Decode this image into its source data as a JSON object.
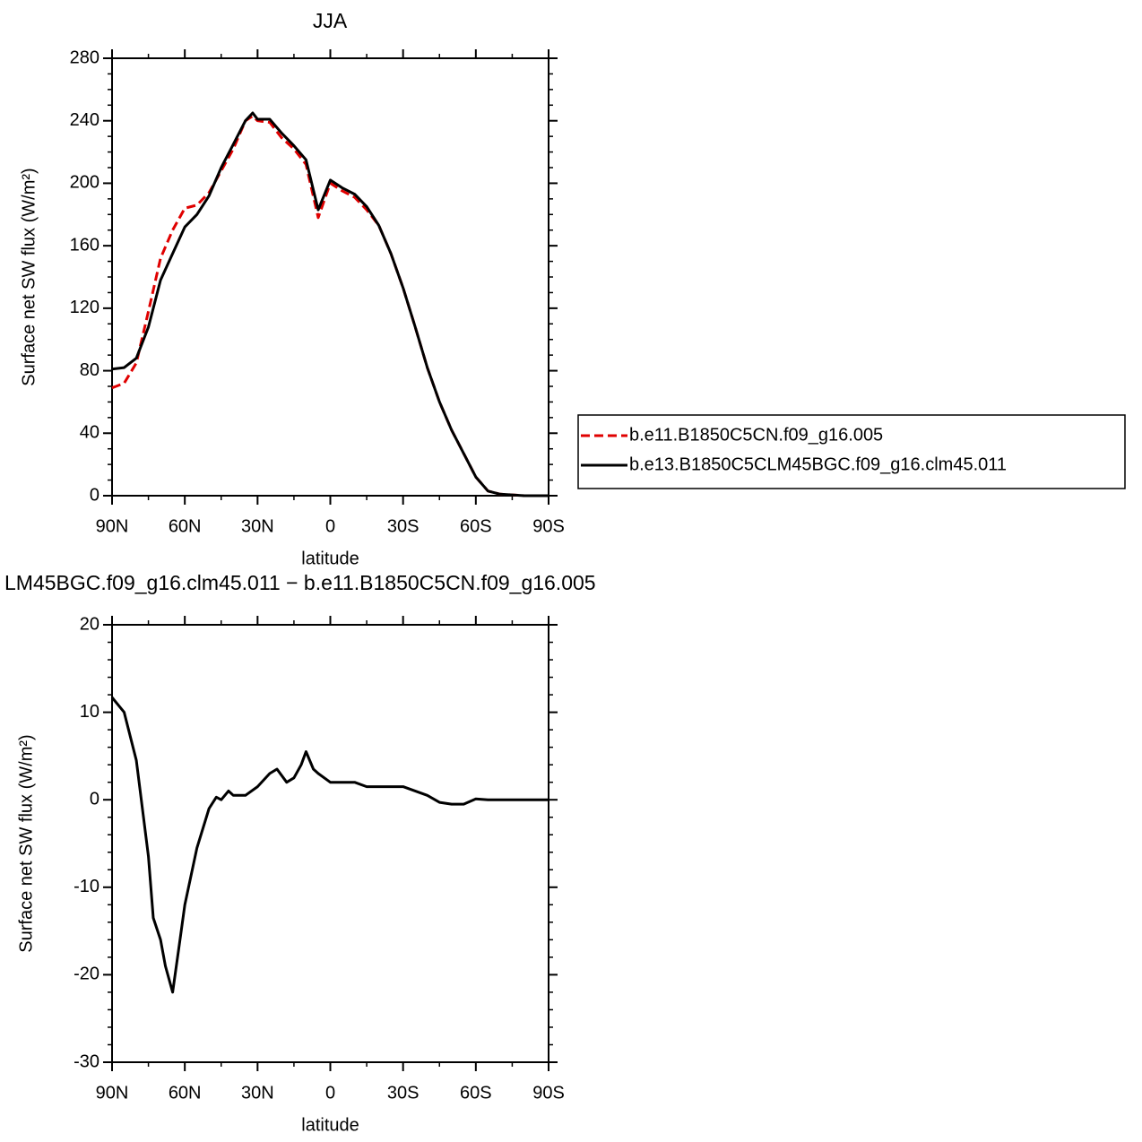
{
  "chart_data": [
    {
      "type": "line",
      "title": "JJA",
      "xlabel": "latitude",
      "ylabel": "Surface net SW flux (W/m²)",
      "x": [
        90,
        85,
        80,
        75,
        70,
        65,
        60,
        55,
        50,
        45,
        40,
        35,
        32,
        30,
        25,
        20,
        15,
        10,
        5,
        0,
        -5,
        -10,
        -15,
        -20,
        -25,
        -30,
        -35,
        -40,
        -45,
        -50,
        -55,
        -60,
        -65,
        -70,
        -75,
        -80,
        -85,
        -90
      ],
      "series": [
        {
          "name": "b.e11.B1850C5CN.f09_g16.005",
          "color": "#e00000",
          "dash": true,
          "values": [
            69,
            72,
            85,
            118,
            152,
            170,
            184,
            186,
            194,
            208,
            222,
            240,
            243,
            240,
            239,
            229,
            222,
            212,
            178,
            200,
            195,
            191,
            183,
            173,
            155,
            133,
            108,
            82,
            60,
            42,
            27,
            12,
            3,
            1,
            0.5,
            0,
            0,
            0
          ]
        },
        {
          "name": "b.e13.B1850C5CLM45BGC.f09_g16.clm45.011",
          "color": "#000000",
          "dash": false,
          "values": [
            81,
            82,
            88,
            108,
            138,
            155,
            172,
            180,
            192,
            210,
            225,
            240,
            245,
            241,
            241,
            232,
            224,
            215,
            183,
            202,
            197,
            193,
            185,
            173,
            155,
            133,
            108,
            82,
            60,
            42,
            27,
            12,
            3,
            1,
            0.5,
            0,
            0,
            0
          ]
        }
      ],
      "xlim": [
        90,
        -90
      ],
      "xticks": [
        {
          "value": 90,
          "label": "90N"
        },
        {
          "value": 60,
          "label": "60N"
        },
        {
          "value": 30,
          "label": "30N"
        },
        0,
        {
          "value": -30,
          "label": "30S"
        },
        {
          "value": -60,
          "label": "60S"
        },
        {
          "value": -90,
          "label": "90S"
        }
      ],
      "ylim": [
        0,
        280
      ],
      "yticks": [
        0,
        40,
        80,
        120,
        160,
        200,
        240,
        280
      ],
      "legend": "right"
    },
    {
      "type": "line",
      "title": "LM45BGC.f09_g16.clm45.011 − b.e11.B1850C5CN.f09_g16.005",
      "xlabel": "latitude",
      "ylabel": "Surface net SW flux (W/m²)",
      "x": [
        90,
        85,
        80,
        75,
        73,
        70,
        68,
        65,
        62,
        60,
        55,
        50,
        47,
        45,
        42,
        40,
        35,
        30,
        25,
        22,
        18,
        15,
        12,
        10,
        7,
        5,
        0,
        -5,
        -10,
        -15,
        -20,
        -25,
        -30,
        -35,
        -40,
        -45,
        -50,
        -55,
        -60,
        -65,
        -70,
        -75,
        -80,
        -85,
        -90
      ],
      "values": [
        11.7,
        10,
        4.5,
        -6.5,
        -13.5,
        -16,
        -19,
        -22,
        -16,
        -12,
        -5.5,
        -1,
        0.3,
        0,
        1,
        0.5,
        0.5,
        1.5,
        3,
        3.5,
        2,
        2.5,
        4,
        5.5,
        3.5,
        3,
        2,
        2,
        2,
        1.5,
        1.5,
        1.5,
        1.5,
        1,
        0.5,
        -0.3,
        -0.5,
        -0.5,
        0.1,
        0,
        0,
        0,
        0,
        0,
        0
      ],
      "color": "#000000",
      "xlim": [
        90,
        -90
      ],
      "xticks": [
        {
          "value": 90,
          "label": "90N"
        },
        {
          "value": 60,
          "label": "60N"
        },
        {
          "value": 30,
          "label": "30N"
        },
        0,
        {
          "value": -30,
          "label": "30S"
        },
        {
          "value": -60,
          "label": "60S"
        },
        {
          "value": -90,
          "label": "90S"
        }
      ],
      "ylim": [
        -30,
        20
      ],
      "yticks": [
        -30,
        -20,
        -10,
        0,
        10,
        20
      ]
    }
  ]
}
